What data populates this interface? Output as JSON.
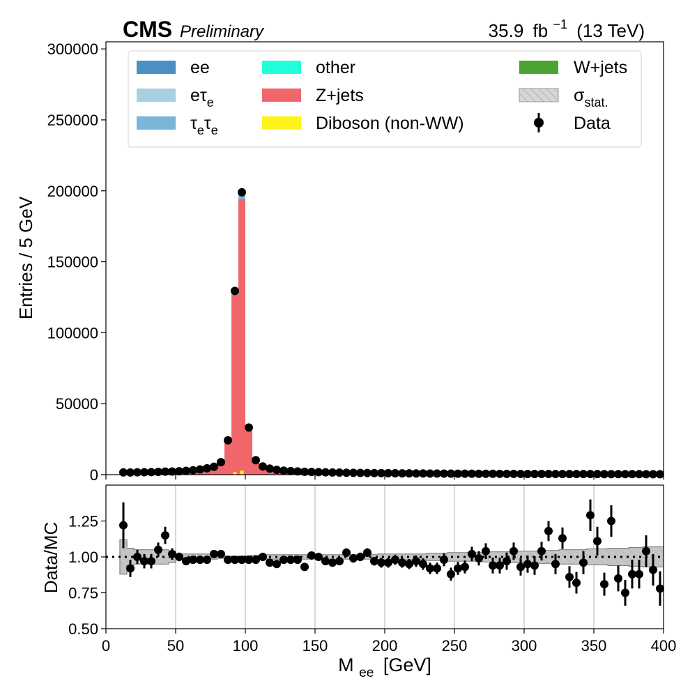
{
  "header": {
    "experiment": "CMS",
    "status": "Preliminary",
    "lumi_value": "35.9",
    "lumi_unit": "fb",
    "lumi_exp": "−1",
    "energy": "(13 TeV)"
  },
  "colors": {
    "ee": "#4a90c2",
    "etau": "#a9cfe3",
    "tautau": "#7ab6d9",
    "other": "#1fffd9",
    "zjets": "#f0666a",
    "diboson": "#fff21a",
    "wjets": "#4ba332",
    "stat": "#c0c0c0",
    "data": "#000000"
  },
  "chart_data": [
    {
      "type": "bar",
      "title": "",
      "xlabel": "",
      "ylabel": "Entries / 5 GeV",
      "xlim": [
        0,
        400
      ],
      "ylim": [
        0,
        305000
      ],
      "yticks": [
        "0",
        "50000",
        "100000",
        "150000",
        "200000",
        "250000",
        "300000"
      ],
      "ytick_values": [
        0,
        50000,
        100000,
        150000,
        200000,
        250000,
        300000
      ],
      "legend_position": "top",
      "legend": [
        {
          "key": "ee",
          "label": "ee",
          "sub": "",
          "kind": "patch"
        },
        {
          "key": "etau",
          "label": "eτ",
          "sub": "e",
          "kind": "patch"
        },
        {
          "key": "tautau",
          "label": "τ",
          "sub": "e",
          "label2": "τ",
          "sub2": "e",
          "kind": "patch"
        },
        {
          "key": "other",
          "label": "other",
          "sub": "",
          "kind": "patch"
        },
        {
          "key": "zjets",
          "label": "Z+jets",
          "sub": "",
          "kind": "patch"
        },
        {
          "key": "diboson",
          "label": "Diboson (non-WW)",
          "sub": "",
          "kind": "patch"
        },
        {
          "key": "wjets",
          "label": "W+jets",
          "sub": "",
          "kind": "patch"
        },
        {
          "key": "stat",
          "label": "σ",
          "sub": "stat.",
          "kind": "hatch"
        },
        {
          "key": "data",
          "label": "Data",
          "sub": "",
          "kind": "marker"
        }
      ],
      "bin_width": 5,
      "x_start": 10,
      "stack": [
        {
          "name": "Z+jets",
          "color_key": "zjets",
          "values": [
            1500,
            1500,
            1600,
            1700,
            1800,
            1900,
            2000,
            2100,
            2300,
            2600,
            3000,
            3600,
            4200,
            5500,
            8500,
            23500,
            127000,
            194000,
            31000,
            9000,
            5200,
            4000,
            3200,
            2700,
            2400,
            2200,
            2000,
            1850,
            1700,
            1600,
            1500,
            1400,
            1300,
            1250,
            1200,
            1150,
            1100,
            1050,
            1000,
            960,
            920,
            880,
            850,
            820,
            790,
            760,
            730,
            700,
            680,
            660,
            640,
            620,
            600,
            580,
            560,
            540,
            520,
            500,
            490,
            480,
            470,
            460,
            450,
            440,
            430,
            420,
            410,
            400,
            390,
            380,
            370,
            360,
            350,
            340,
            330,
            320,
            310,
            300
          ]
        },
        {
          "name": "Diboson (non-WW)",
          "color_key": "diboson",
          "overlay": true,
          "values": [
            0,
            0,
            0,
            0,
            0,
            0,
            0,
            0,
            0,
            0,
            0,
            0,
            0,
            0,
            0,
            0,
            1800,
            2800,
            0,
            0,
            0,
            0,
            0,
            0,
            0,
            0,
            0,
            0,
            0,
            0,
            0,
            0,
            0,
            0,
            0,
            0,
            0,
            0,
            0,
            0,
            0,
            0,
            0,
            0,
            0,
            0,
            0,
            0,
            0,
            0,
            0,
            0,
            0,
            0,
            0,
            0,
            0,
            0,
            0,
            0,
            0,
            0,
            0,
            0,
            0,
            0,
            0,
            0,
            0,
            0,
            0,
            0,
            0,
            0,
            0,
            0,
            0,
            0
          ]
        },
        {
          "name": "ee",
          "color_key": "tautau",
          "values": [
            0,
            0,
            0,
            0,
            0,
            0,
            0,
            0,
            0,
            0,
            0,
            0,
            0,
            0,
            0,
            0,
            1500,
            2800,
            0,
            0,
            0,
            0,
            0,
            0,
            0,
            0,
            0,
            0,
            0,
            0,
            0,
            0,
            0,
            0,
            0,
            0,
            0,
            0,
            0,
            0,
            0,
            0,
            0,
            0,
            0,
            0,
            0,
            0,
            0,
            0,
            0,
            0,
            0,
            0,
            0,
            0,
            0,
            0,
            0,
            0,
            0,
            0,
            0,
            0,
            0,
            0,
            0,
            0,
            0,
            0,
            0,
            0,
            0,
            0,
            0,
            0,
            0,
            0
          ]
        }
      ],
      "data": {
        "x": [
          12.5,
          17.5,
          22.5,
          27.5,
          32.5,
          37.5,
          42.5,
          47.5,
          52.5,
          57.5,
          62.5,
          67.5,
          72.5,
          77.5,
          82.5,
          87.5,
          92.5,
          97.5,
          102.5,
          107.5,
          112.5,
          117.5,
          122.5,
          127.5,
          132.5,
          137.5,
          142.5,
          147.5,
          152.5,
          157.5,
          162.5,
          167.5,
          172.5,
          177.5,
          182.5,
          187.5,
          192.5,
          197.5,
          202.5,
          207.5,
          212.5,
          217.5,
          222.5,
          227.5,
          232.5,
          237.5,
          242.5,
          247.5,
          252.5,
          257.5,
          262.5,
          267.5,
          272.5,
          277.5,
          282.5,
          287.5,
          292.5,
          297.5,
          302.5,
          307.5,
          312.5,
          317.5,
          322.5,
          327.5,
          332.5,
          337.5,
          342.5,
          347.5,
          352.5,
          357.5,
          362.5,
          367.5,
          372.5,
          377.5,
          382.5,
          387.5,
          392.5,
          397.5
        ],
        "y": [
          1600,
          1550,
          1650,
          1700,
          1800,
          1950,
          2150,
          2200,
          2400,
          2700,
          3100,
          3700,
          4500,
          5600,
          8800,
          24200,
          129500,
          199000,
          33200,
          10200,
          5800,
          4300,
          3400,
          2800,
          2500,
          2300,
          2050,
          1900,
          1750,
          1650,
          1550,
          1450,
          1350,
          1300,
          1250,
          1180,
          1120,
          1080,
          1020,
          980,
          940,
          900,
          870,
          840,
          810,
          780,
          750,
          720,
          700,
          680,
          660,
          640,
          620,
          600,
          580,
          560,
          540,
          520,
          500,
          490,
          480,
          470,
          460,
          450,
          440,
          430,
          420,
          410,
          400,
          390,
          380,
          370,
          360,
          350,
          340,
          330,
          320,
          310
        ]
      }
    },
    {
      "type": "scatter",
      "title": "",
      "xlabel": "M",
      "xlabel_sub": "ee",
      "xlabel_unit": "[GeV]",
      "ylabel": "Data/MC",
      "xlim": [
        0,
        400
      ],
      "ylim": [
        0.5,
        1.5
      ],
      "xticks": [
        "0",
        "50",
        "100",
        "150",
        "200",
        "250",
        "300",
        "350",
        "400"
      ],
      "xtick_values": [
        0,
        50,
        100,
        150,
        200,
        250,
        300,
        350,
        400
      ],
      "yticks": [
        "0.50",
        "0.75",
        "1.00",
        "1.25"
      ],
      "ytick_values": [
        0.5,
        0.75,
        1.0,
        1.25
      ],
      "grid": "x",
      "reference_line": 1.0,
      "stat_band_halfwidth": [
        0.12,
        0.06,
        0.05,
        0.05,
        0.05,
        0.05,
        0.05,
        0.04,
        0.02,
        0.02,
        0.02,
        0.02,
        0.02,
        0.015,
        0.01,
        0.005,
        0.003,
        0.003,
        0.008,
        0.012,
        0.015,
        0.015,
        0.015,
        0.015,
        0.015,
        0.015,
        0.015,
        0.015,
        0.015,
        0.015,
        0.015,
        0.015,
        0.015,
        0.015,
        0.015,
        0.015,
        0.015,
        0.02,
        0.02,
        0.02,
        0.02,
        0.02,
        0.02,
        0.02,
        0.025,
        0.025,
        0.025,
        0.03,
        0.03,
        0.03,
        0.03,
        0.03,
        0.035,
        0.035,
        0.035,
        0.035,
        0.04,
        0.04,
        0.04,
        0.04,
        0.045,
        0.045,
        0.045,
        0.05,
        0.05,
        0.05,
        0.05,
        0.055,
        0.055,
        0.055,
        0.06,
        0.06,
        0.06,
        0.065,
        0.065,
        0.07,
        0.07,
        0.07
      ],
      "x": [
        12.5,
        17.5,
        22.5,
        27.5,
        32.5,
        37.5,
        42.5,
        47.5,
        52.5,
        57.5,
        62.5,
        67.5,
        72.5,
        77.5,
        82.5,
        87.5,
        92.5,
        97.5,
        102.5,
        107.5,
        112.5,
        117.5,
        122.5,
        127.5,
        132.5,
        137.5,
        142.5,
        147.5,
        152.5,
        157.5,
        162.5,
        167.5,
        172.5,
        177.5,
        182.5,
        187.5,
        192.5,
        197.5,
        202.5,
        207.5,
        212.5,
        217.5,
        222.5,
        227.5,
        232.5,
        237.5,
        242.5,
        247.5,
        252.5,
        257.5,
        262.5,
        267.5,
        272.5,
        277.5,
        282.5,
        287.5,
        292.5,
        297.5,
        302.5,
        307.5,
        312.5,
        317.5,
        322.5,
        327.5,
        332.5,
        337.5,
        342.5,
        347.5,
        352.5,
        357.5,
        362.5,
        367.5,
        372.5,
        377.5,
        382.5,
        387.5,
        392.5,
        397.5
      ],
      "y": [
        1.22,
        0.92,
        1.0,
        0.97,
        0.97,
        1.05,
        1.15,
        1.02,
        1.0,
        0.97,
        0.98,
        0.98,
        0.98,
        1.02,
        1.02,
        0.98,
        0.98,
        0.98,
        0.98,
        0.98,
        1.0,
        0.96,
        0.95,
        0.98,
        0.98,
        0.98,
        0.93,
        1.01,
        1.0,
        0.97,
        0.96,
        0.97,
        1.03,
        0.99,
        1.0,
        1.03,
        0.97,
        0.96,
        0.96,
        0.98,
        0.96,
        0.95,
        0.97,
        0.95,
        0.92,
        0.92,
        0.98,
        0.88,
        0.92,
        0.93,
        1.02,
        0.99,
        1.04,
        0.94,
        0.94,
        0.97,
        1.04,
        0.93,
        0.95,
        0.94,
        1.04,
        1.18,
        0.95,
        1.13,
        0.86,
        0.82,
        0.96,
        1.29,
        1.11,
        0.81,
        1.25,
        0.85,
        0.75,
        0.88,
        0.88,
        1.04,
        0.91,
        0.78
      ],
      "err": [
        0.16,
        0.06,
        0.05,
        0.05,
        0.05,
        0.05,
        0.06,
        0.04,
        0.03,
        0.02,
        0.02,
        0.02,
        0.02,
        0.02,
        0.01,
        0.005,
        0.003,
        0.005,
        0.01,
        0.01,
        0.015,
        0.02,
        0.02,
        0.02,
        0.02,
        0.02,
        0.02,
        0.02,
        0.02,
        0.02,
        0.025,
        0.025,
        0.03,
        0.03,
        0.03,
        0.03,
        0.03,
        0.035,
        0.035,
        0.035,
        0.035,
        0.035,
        0.04,
        0.04,
        0.04,
        0.04,
        0.045,
        0.045,
        0.045,
        0.045,
        0.05,
        0.05,
        0.055,
        0.055,
        0.055,
        0.06,
        0.06,
        0.06,
        0.06,
        0.065,
        0.065,
        0.07,
        0.07,
        0.075,
        0.075,
        0.075,
        0.08,
        0.11,
        0.1,
        0.08,
        0.11,
        0.09,
        0.09,
        0.1,
        0.1,
        0.11,
        0.11,
        0.12
      ]
    }
  ]
}
